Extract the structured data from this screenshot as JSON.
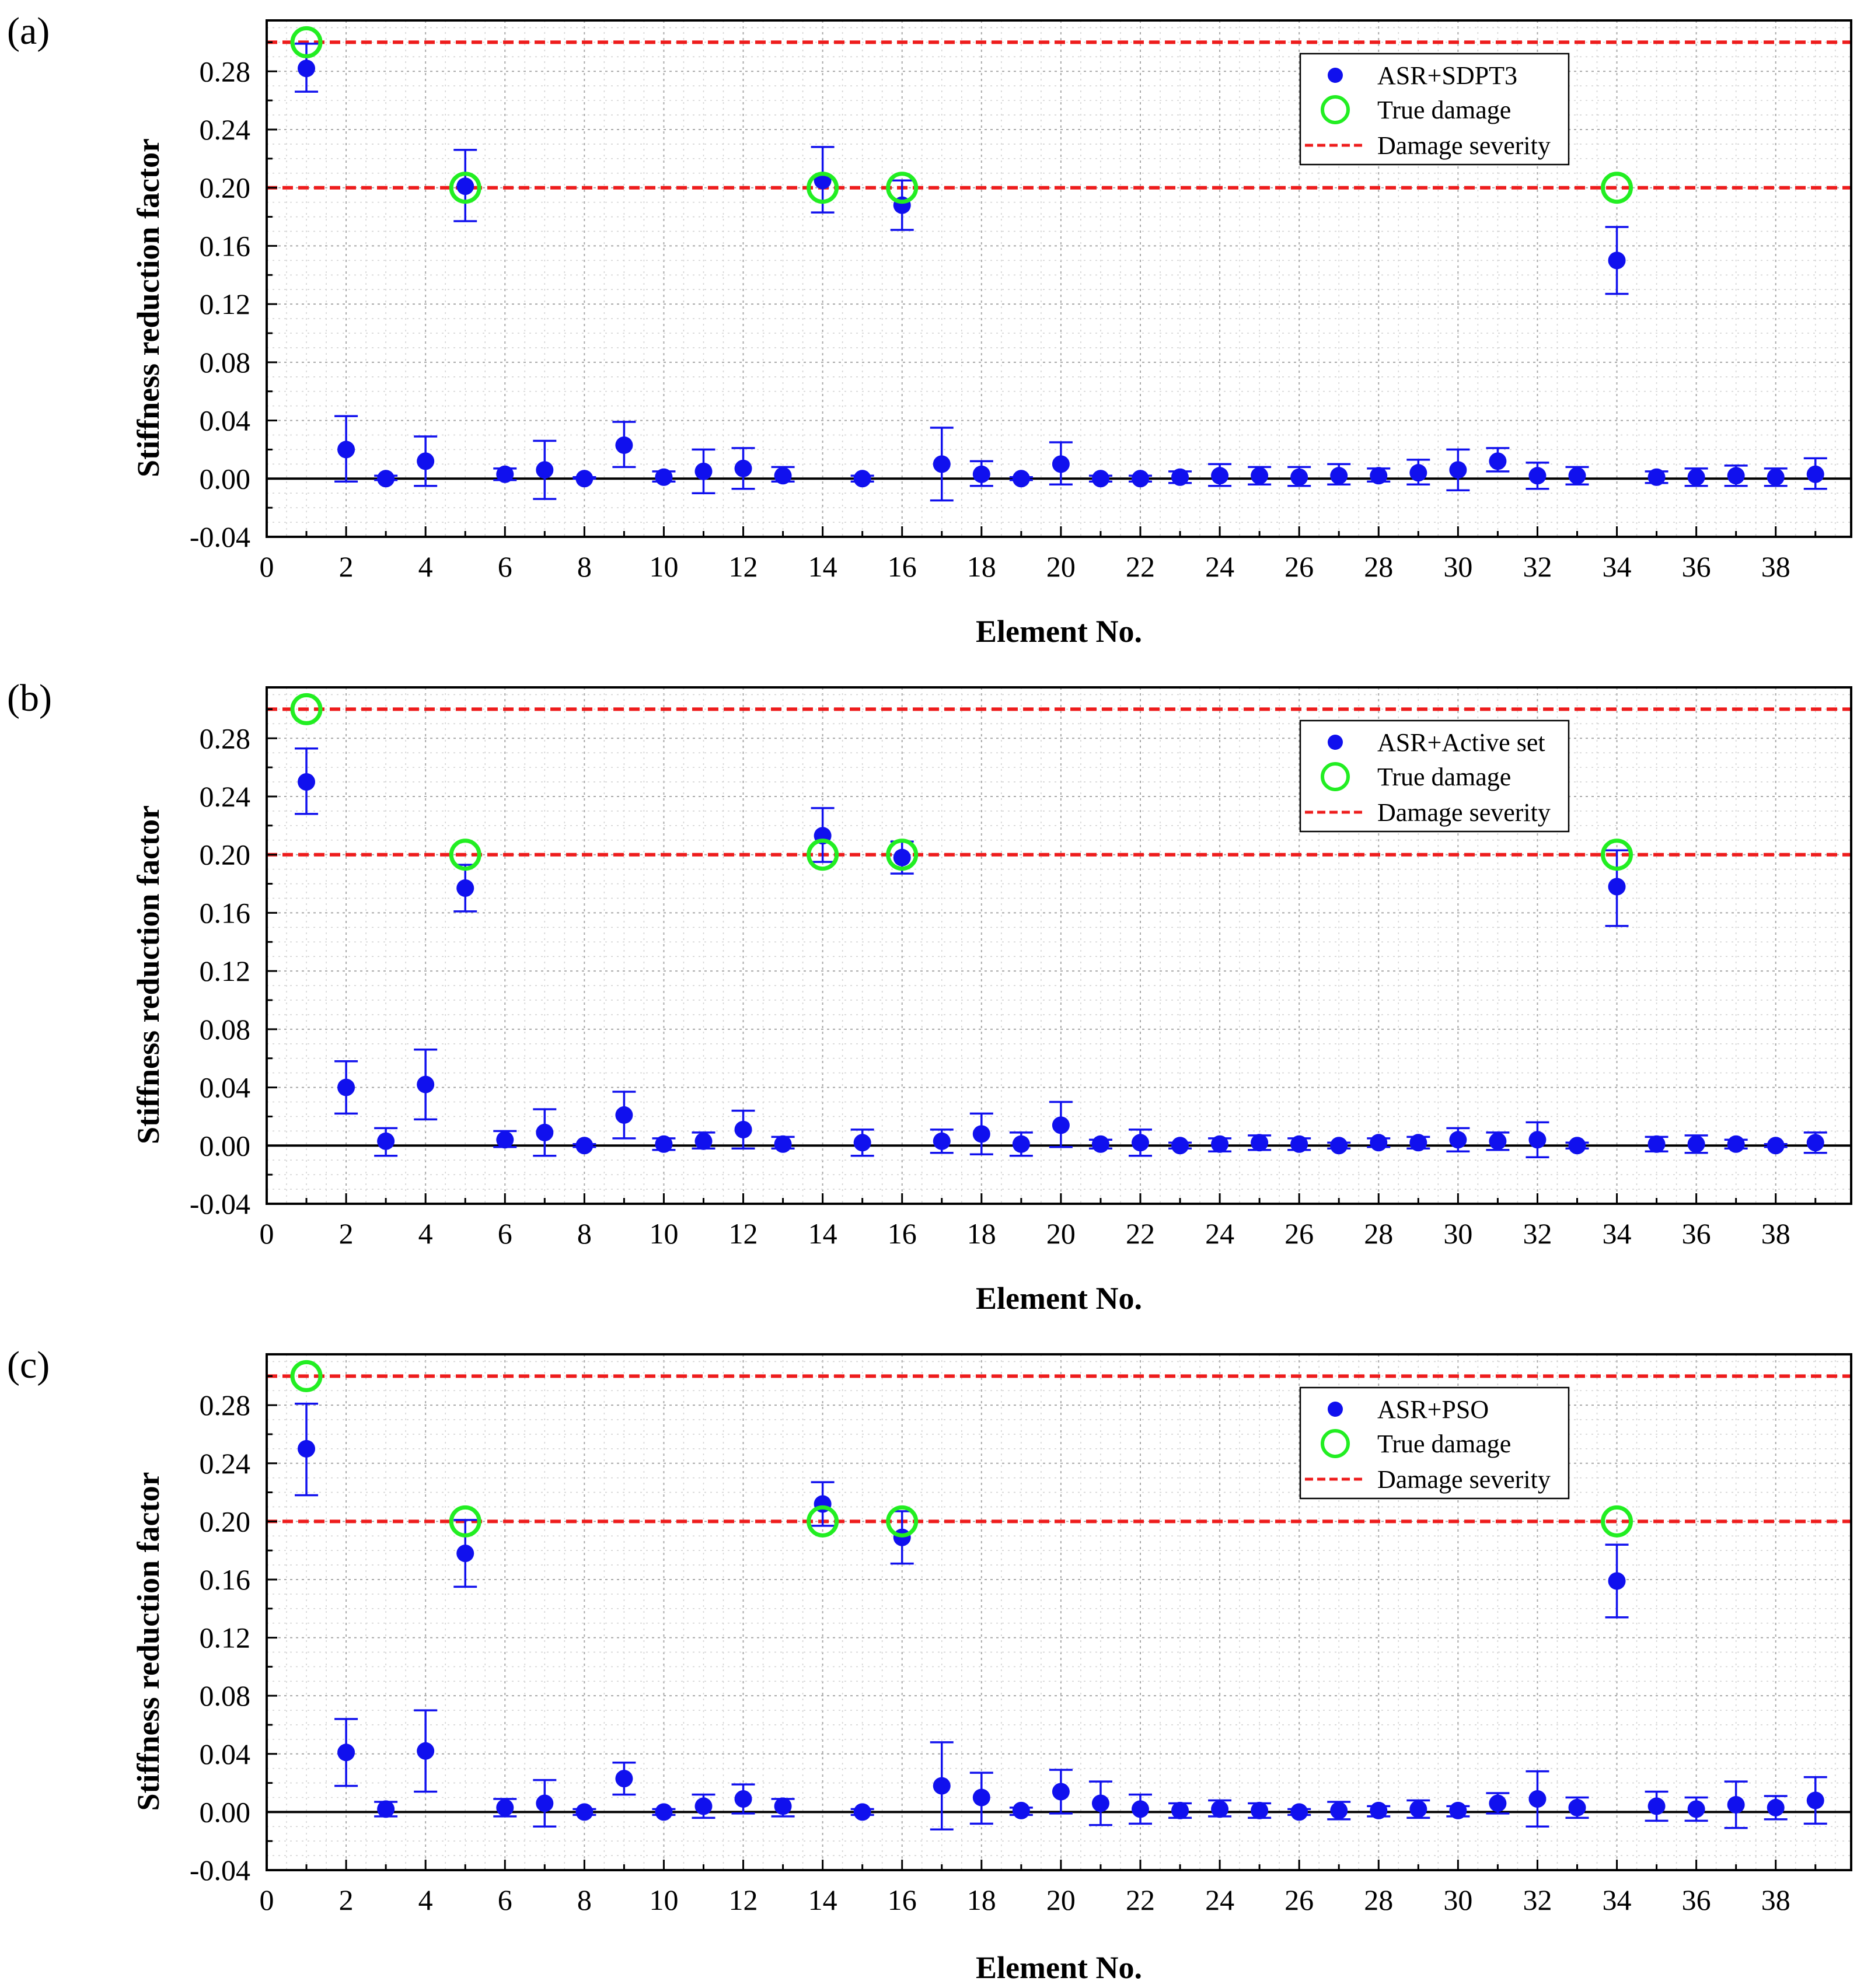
{
  "chart_data": [
    {
      "panel_label": "(a)",
      "type": "scatter",
      "xlabel": "Element No.",
      "ylabel": "Stiffness reduction factor",
      "xlim": [
        0,
        39.9
      ],
      "ylim": [
        -0.04,
        0.315
      ],
      "x_ticks": [
        "0",
        "2",
        "4",
        "6",
        "8",
        "10",
        "12",
        "14",
        "16",
        "18",
        "20",
        "22",
        "24",
        "26",
        "28",
        "30",
        "32",
        "34",
        "36",
        "38"
      ],
      "y_ticks": [
        "-0.04",
        "0.00",
        "0.04",
        "0.08",
        "0.12",
        "0.16",
        "0.20",
        "0.24",
        "0.28"
      ],
      "grid": true,
      "legend": [
        "ASR+SDPT3",
        "True damage",
        "Damage severity"
      ],
      "legend_position": "top-right",
      "damage_severity_levels": [
        0.3,
        0.2
      ],
      "true_damage": {
        "x": [
          1,
          5,
          14,
          16,
          34
        ],
        "y": [
          0.3,
          0.2,
          0.2,
          0.2,
          0.2
        ]
      },
      "series": [
        {
          "name": "ASR+SDPT3",
          "x": [
            1,
            2,
            3,
            4,
            5,
            6,
            7,
            8,
            9,
            10,
            11,
            12,
            13,
            14,
            15,
            16,
            17,
            18,
            19,
            20,
            21,
            22,
            23,
            24,
            25,
            26,
            27,
            28,
            29,
            30,
            31,
            32,
            33,
            34,
            35,
            36,
            37,
            38,
            39
          ],
          "y": [
            0.282,
            0.02,
            0.0,
            0.012,
            0.201,
            0.003,
            0.006,
            0.0,
            0.023,
            0.001,
            0.005,
            0.007,
            0.002,
            0.205,
            0.0,
            0.188,
            0.01,
            0.003,
            0.0,
            0.01,
            0.0,
            0.0,
            0.001,
            0.002,
            0.002,
            0.001,
            0.002,
            0.002,
            0.004,
            0.006,
            0.012,
            0.002,
            0.002,
            0.15,
            0.001,
            0.001,
            0.002,
            0.001,
            0.003
          ],
          "err_lower": [
            0.016,
            0.022,
            0.001,
            0.017,
            0.024,
            0.004,
            0.02,
            0.0,
            0.015,
            0.003,
            0.015,
            0.014,
            0.004,
            0.022,
            0.002,
            0.017,
            0.025,
            0.008,
            0.001,
            0.014,
            0.002,
            0.002,
            0.004,
            0.007,
            0.006,
            0.006,
            0.006,
            0.004,
            0.008,
            0.014,
            0.007,
            0.009,
            0.006,
            0.023,
            0.004,
            0.006,
            0.007,
            0.006,
            0.01
          ],
          "err_upper": [
            0.017,
            0.023,
            0.002,
            0.017,
            0.025,
            0.004,
            0.02,
            0.001,
            0.016,
            0.004,
            0.015,
            0.014,
            0.006,
            0.023,
            0.002,
            0.017,
            0.025,
            0.009,
            0.001,
            0.015,
            0.002,
            0.002,
            0.004,
            0.008,
            0.006,
            0.007,
            0.008,
            0.005,
            0.009,
            0.014,
            0.009,
            0.009,
            0.006,
            0.023,
            0.004,
            0.006,
            0.007,
            0.006,
            0.011
          ]
        }
      ]
    },
    {
      "panel_label": "(b)",
      "type": "scatter",
      "xlabel": "Element No.",
      "ylabel": "Stiffness reduction factor",
      "xlim": [
        0,
        39.9
      ],
      "ylim": [
        -0.04,
        0.315
      ],
      "x_ticks": [
        "0",
        "2",
        "4",
        "6",
        "8",
        "10",
        "12",
        "14",
        "16",
        "18",
        "20",
        "22",
        "24",
        "26",
        "28",
        "30",
        "32",
        "34",
        "36",
        "38"
      ],
      "y_ticks": [
        "-0.04",
        "0.00",
        "0.04",
        "0.08",
        "0.12",
        "0.16",
        "0.20",
        "0.24",
        "0.28"
      ],
      "grid": true,
      "legend": [
        "ASR+Active set",
        "True damage",
        "Damage severity"
      ],
      "legend_position": "top-right",
      "damage_severity_levels": [
        0.3,
        0.2
      ],
      "true_damage": {
        "x": [
          1,
          5,
          14,
          16,
          34
        ],
        "y": [
          0.3,
          0.2,
          0.2,
          0.2,
          0.2
        ]
      },
      "series": [
        {
          "name": "ASR+Active set",
          "x": [
            1,
            2,
            3,
            4,
            5,
            6,
            7,
            8,
            9,
            10,
            11,
            12,
            13,
            14,
            15,
            16,
            17,
            18,
            19,
            20,
            21,
            22,
            23,
            24,
            25,
            26,
            27,
            28,
            29,
            30,
            31,
            32,
            33,
            34,
            35,
            36,
            37,
            38,
            39
          ],
          "y": [
            0.25,
            0.04,
            0.003,
            0.042,
            0.177,
            0.004,
            0.009,
            0.0,
            0.021,
            0.001,
            0.003,
            0.011,
            0.001,
            0.213,
            0.002,
            0.198,
            0.003,
            0.008,
            0.001,
            0.014,
            0.001,
            0.002,
            0.0,
            0.001,
            0.002,
            0.001,
            0.0,
            0.002,
            0.002,
            0.004,
            0.003,
            0.004,
            0.0,
            0.178,
            0.001,
            0.001,
            0.001,
            0.0,
            0.002
          ],
          "err_lower": [
            0.022,
            0.018,
            0.01,
            0.024,
            0.016,
            0.005,
            0.016,
            0.001,
            0.016,
            0.004,
            0.005,
            0.013,
            0.003,
            0.018,
            0.009,
            0.011,
            0.008,
            0.014,
            0.008,
            0.015,
            0.003,
            0.009,
            0.002,
            0.005,
            0.005,
            0.004,
            0.002,
            0.003,
            0.004,
            0.008,
            0.006,
            0.012,
            0.002,
            0.027,
            0.005,
            0.006,
            0.003,
            0.001,
            0.007
          ],
          "err_upper": [
            0.023,
            0.018,
            0.009,
            0.024,
            0.016,
            0.006,
            0.016,
            0.001,
            0.016,
            0.004,
            0.006,
            0.013,
            0.005,
            0.019,
            0.009,
            0.011,
            0.008,
            0.014,
            0.008,
            0.016,
            0.003,
            0.009,
            0.002,
            0.004,
            0.005,
            0.004,
            0.002,
            0.003,
            0.004,
            0.008,
            0.006,
            0.012,
            0.002,
            0.025,
            0.005,
            0.006,
            0.003,
            0.001,
            0.007
          ]
        }
      ]
    },
    {
      "panel_label": "(c)",
      "type": "scatter",
      "xlabel": "Element No.",
      "ylabel": "Stiffness reduction factor",
      "xlim": [
        0,
        39.9
      ],
      "ylim": [
        -0.04,
        0.315
      ],
      "x_ticks": [
        "0",
        "2",
        "4",
        "6",
        "8",
        "10",
        "12",
        "14",
        "16",
        "18",
        "20",
        "22",
        "24",
        "26",
        "28",
        "30",
        "32",
        "34",
        "36",
        "38"
      ],
      "y_ticks": [
        "-0.04",
        "0.00",
        "0.04",
        "0.08",
        "0.12",
        "0.16",
        "0.20",
        "0.24",
        "0.28"
      ],
      "grid": true,
      "legend": [
        "ASR+PSO",
        "True damage",
        "Damage severity"
      ],
      "legend_position": "top-right",
      "damage_severity_levels": [
        0.3,
        0.2
      ],
      "true_damage": {
        "x": [
          1,
          5,
          14,
          16,
          34
        ],
        "y": [
          0.3,
          0.2,
          0.2,
          0.2,
          0.2
        ]
      },
      "series": [
        {
          "name": "ASR+PSO",
          "x": [
            1,
            2,
            3,
            4,
            5,
            6,
            7,
            8,
            9,
            10,
            11,
            12,
            13,
            14,
            15,
            16,
            17,
            18,
            19,
            20,
            21,
            22,
            23,
            24,
            25,
            26,
            27,
            28,
            29,
            30,
            31,
            32,
            33,
            34,
            35,
            36,
            37,
            38,
            39
          ],
          "y": [
            0.25,
            0.041,
            0.002,
            0.042,
            0.178,
            0.003,
            0.006,
            0.0,
            0.023,
            0.0,
            0.004,
            0.009,
            0.004,
            0.212,
            0.0,
            0.189,
            0.018,
            0.01,
            0.001,
            0.014,
            0.006,
            0.002,
            0.001,
            0.002,
            0.001,
            0.0,
            0.001,
            0.001,
            0.002,
            0.001,
            0.006,
            0.009,
            0.003,
            0.159,
            0.004,
            0.002,
            0.005,
            0.003,
            0.008
          ],
          "err_lower": [
            0.032,
            0.023,
            0.005,
            0.028,
            0.023,
            0.006,
            0.016,
            0.002,
            0.011,
            0.002,
            0.008,
            0.01,
            0.007,
            0.015,
            0.002,
            0.018,
            0.03,
            0.018,
            0.003,
            0.015,
            0.015,
            0.01,
            0.005,
            0.005,
            0.005,
            0.002,
            0.006,
            0.004,
            0.006,
            0.004,
            0.007,
            0.019,
            0.007,
            0.025,
            0.01,
            0.008,
            0.016,
            0.008,
            0.016
          ],
          "err_upper": [
            0.031,
            0.023,
            0.005,
            0.028,
            0.023,
            0.006,
            0.016,
            0.002,
            0.011,
            0.002,
            0.008,
            0.01,
            0.005,
            0.015,
            0.002,
            0.018,
            0.03,
            0.017,
            0.002,
            0.015,
            0.015,
            0.01,
            0.005,
            0.006,
            0.005,
            0.002,
            0.006,
            0.003,
            0.006,
            0.003,
            0.007,
            0.019,
            0.007,
            0.025,
            0.01,
            0.008,
            0.016,
            0.008,
            0.016
          ]
        }
      ]
    }
  ]
}
